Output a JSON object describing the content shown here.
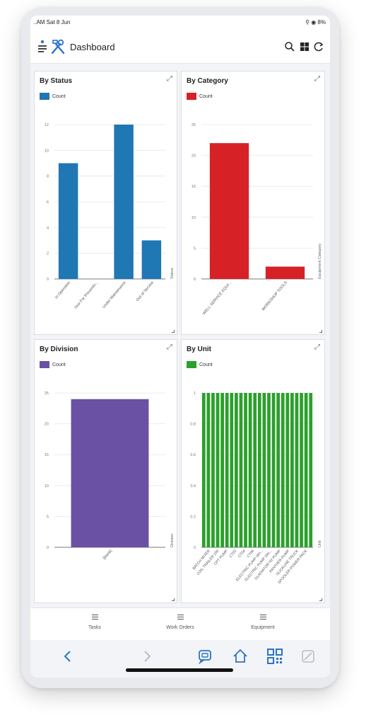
{
  "status_bar": {
    "time": "..AM  Sat 8 Jun",
    "system": "⚲ ◉ 8%"
  },
  "header": {
    "title": "Dashboard",
    "icons": [
      "menu-icon",
      "tools-icon",
      "search-icon",
      "grid-icon",
      "refresh-icon"
    ]
  },
  "cards": [
    {
      "title": "By Status",
      "legend": "Count",
      "axis_title": "Status"
    },
    {
      "title": "By Category",
      "legend": "Count",
      "axis_title": "Equipment Category"
    },
    {
      "title": "By Division",
      "legend": "Count",
      "axis_title": "Division"
    },
    {
      "title": "By Unit",
      "legend": "Count",
      "axis_title": "Unit"
    }
  ],
  "chart_data": [
    {
      "type": "bar",
      "title": "By Status",
      "color": "#1f77b4",
      "categories": [
        "In Operation",
        "Due For Preventiv...",
        "Under Maintenance",
        "Out of Service"
      ],
      "values": [
        9,
        0,
        12,
        3
      ],
      "ylim": [
        0,
        12
      ],
      "yticks": [
        "0",
        "2",
        "4",
        "6",
        "8",
        "10",
        "12"
      ],
      "legend": "Count",
      "xlabel": "Status"
    },
    {
      "type": "bar",
      "title": "By Category",
      "color": "#d62226",
      "categories": [
        "WELL SERVICE EQUI...",
        "WORKSHOP TOOLS"
      ],
      "values": [
        22,
        2
      ],
      "ylim": [
        0,
        25
      ],
      "yticks": [
        "0",
        "5",
        "10",
        "15",
        "20",
        "25"
      ],
      "legend": "Count",
      "xlabel": "Equipment Category"
    },
    {
      "type": "bar",
      "title": "By Division",
      "color": "#6a51a3",
      "categories": [
        "[blank]"
      ],
      "values": [
        24
      ],
      "ylim": [
        0,
        25
      ],
      "yticks": [
        "0",
        "5",
        "10",
        "15",
        "20",
        "25"
      ],
      "legend": "Count",
      "xlabel": "Division"
    },
    {
      "type": "bar",
      "title": "By Unit",
      "color": "#2ca02c",
      "categories": [
        "BATCH MIXER",
        "",
        "COIL TRAILER 150",
        "",
        "CPT PUMP",
        "",
        "CT02",
        "",
        "CT04",
        "",
        "CT06",
        "",
        "ELECTRIC PUMP SKI...",
        "",
        "ELECTRIC PUMP SKI...",
        "",
        "GLADIATOR N2 PUMP",
        "",
        "PANTHER PUMP",
        "",
        "SLICKLINE TRUCK",
        "",
        "SPOOLER POWER PACK",
        ""
      ],
      "tick_labels": [
        "BATCH MIXER",
        "COIL TRAILER 150",
        "CPT PUMP",
        "CT02",
        "CT04",
        "CT06",
        "ELECTRIC PUMP SKI...",
        "ELECTRIC PUMP SKI...",
        "GLADIATOR N2 PUMP",
        "PANTHER PUMP",
        "SLICKLINE TRUCK",
        "SPOOLER POWER PACK"
      ],
      "values": [
        1,
        1,
        1,
        1,
        1,
        1,
        1,
        1,
        1,
        1,
        1,
        1,
        1,
        1,
        1,
        1,
        1,
        1,
        1,
        1,
        1,
        1,
        1,
        1
      ],
      "ylim": [
        0,
        1
      ],
      "yticks": [
        "0",
        "0.2",
        "0.4",
        "0.6",
        "0.8",
        "1"
      ],
      "legend": "Count",
      "xlabel": "Unit"
    }
  ],
  "bottom_nav": [
    {
      "label": "Tasks",
      "icon": "list-icon"
    },
    {
      "label": "Work Orders",
      "icon": "list-icon"
    },
    {
      "label": "Equipment",
      "icon": "list-icon"
    }
  ],
  "browser_bar": {
    "icons": [
      "back-icon",
      "forward-icon",
      "chat-bot-icon",
      "home-icon",
      "qr-code-icon",
      "clear-icon"
    ]
  }
}
